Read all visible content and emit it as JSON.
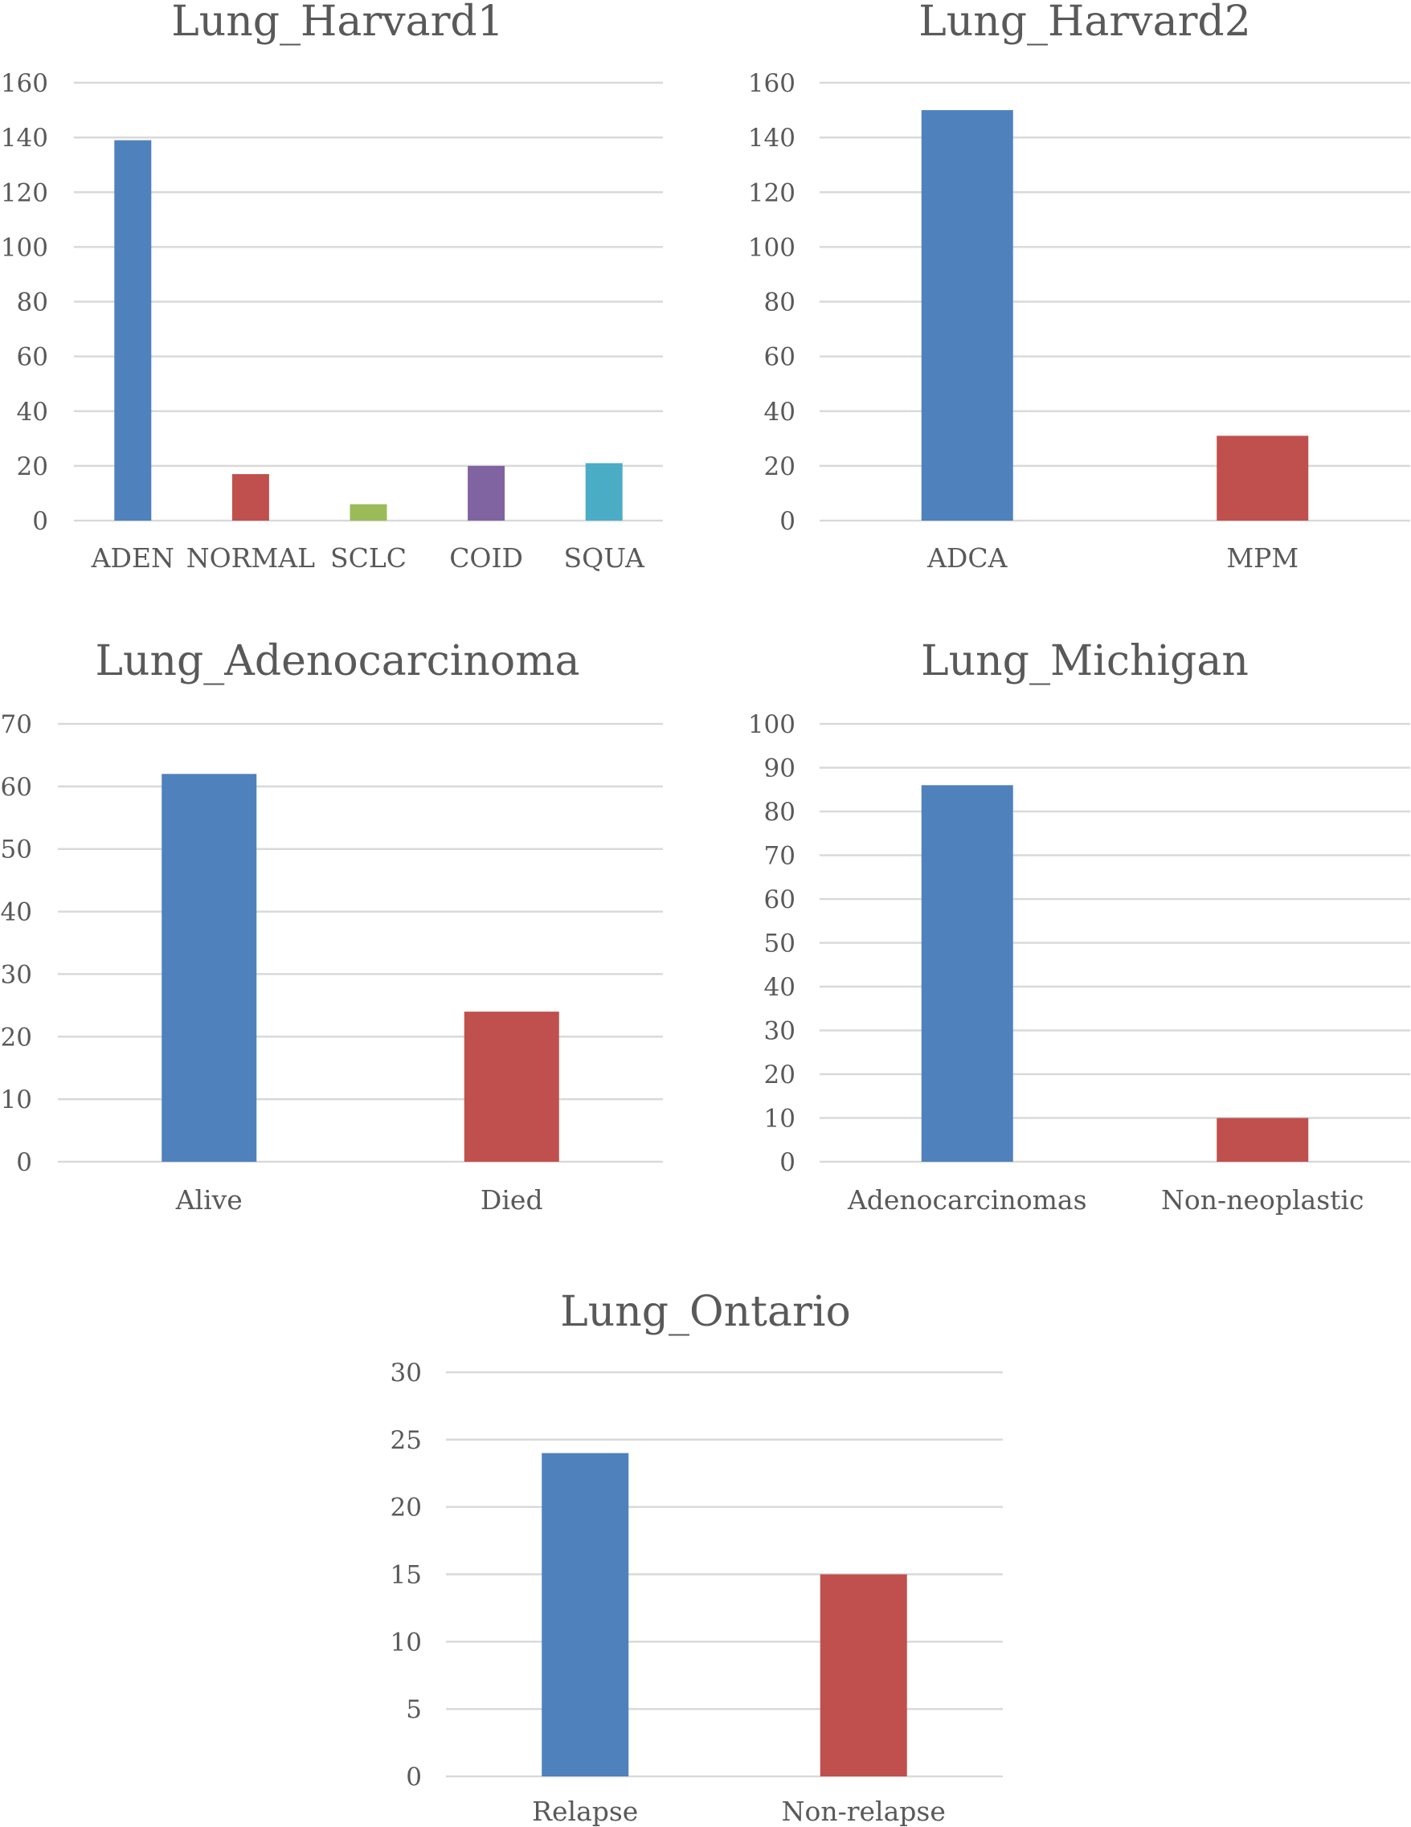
{
  "colors": {
    "blue": "#4f81bd",
    "red": "#c0504d",
    "green": "#9bbb59",
    "purple": "#8064a2",
    "teal": "#4bacc6"
  },
  "chart_data": [
    {
      "type": "bar",
      "title": "Lung_Harvard1",
      "categories": [
        "ADEN",
        "NORMAL",
        "SCLC",
        "COID",
        "SQUA"
      ],
      "values": [
        139,
        17,
        6,
        20,
        21
      ],
      "colors": [
        "#4f81bd",
        "#c0504d",
        "#9bbb59",
        "#8064a2",
        "#4bacc6"
      ],
      "ylim": [
        0,
        160
      ],
      "yticks": [
        "0",
        "20",
        "40",
        "60",
        "80",
        "100",
        "120",
        "140",
        "160"
      ],
      "grid": true,
      "legend": "none"
    },
    {
      "type": "bar",
      "title": "Lung_Harvard2",
      "categories": [
        "ADCA",
        "MPM"
      ],
      "values": [
        150,
        31
      ],
      "colors": [
        "#4f81bd",
        "#c0504d"
      ],
      "ylim": [
        0,
        160
      ],
      "yticks": [
        "0",
        "20",
        "40",
        "60",
        "80",
        "100",
        "120",
        "140",
        "160"
      ],
      "grid": true,
      "legend": "none"
    },
    {
      "type": "bar",
      "title": "Lung_Adenocarcinoma",
      "categories": [
        "Alive",
        "Died"
      ],
      "values": [
        62,
        24
      ],
      "colors": [
        "#4f81bd",
        "#c0504d"
      ],
      "ylim": [
        0,
        70
      ],
      "yticks": [
        "0",
        "10",
        "20",
        "30",
        "40",
        "50",
        "60",
        "70"
      ],
      "grid": true,
      "legend": "none"
    },
    {
      "type": "bar",
      "title": "Lung_Michigan",
      "categories": [
        "Adenocarcinomas",
        "Non-neoplastic"
      ],
      "values": [
        86,
        10
      ],
      "colors": [
        "#4f81bd",
        "#c0504d"
      ],
      "ylim": [
        0,
        100
      ],
      "yticks": [
        "0",
        "10",
        "20",
        "30",
        "40",
        "50",
        "60",
        "70",
        "80",
        "90",
        "100"
      ],
      "grid": true,
      "legend": "none"
    },
    {
      "type": "bar",
      "title": "Lung_Ontario",
      "categories": [
        "Relapse",
        "Non-relapse"
      ],
      "values": [
        24,
        15
      ],
      "colors": [
        "#4f81bd",
        "#c0504d"
      ],
      "ylim": [
        0,
        30
      ],
      "yticks": [
        "0",
        "5",
        "10",
        "15",
        "20",
        "25",
        "30"
      ],
      "grid": true,
      "legend": "none"
    }
  ]
}
